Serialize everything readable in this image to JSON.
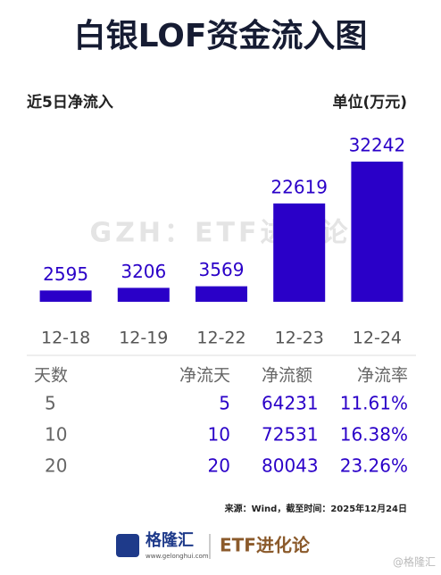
{
  "chart_data": {
    "type": "bar",
    "title": "白银LOF资金流入图",
    "subtitle": "近5日净流入",
    "unit": "单位(万元)",
    "watermark": "GZH：ETF进化论",
    "categories": [
      "12-18",
      "12-19",
      "12-22",
      "12-23",
      "12-24"
    ],
    "values": [
      2595,
      3206,
      3569,
      22619,
      32242
    ],
    "color": "#2a00c8"
  },
  "table": {
    "header": [
      "天数",
      "净流天",
      "净流额",
      "净流率"
    ],
    "rows": [
      [
        5,
        5,
        64231,
        "11.61%"
      ],
      [
        10,
        10,
        72531,
        "16.38%"
      ],
      [
        20,
        20,
        80043,
        "23.26%"
      ]
    ]
  },
  "source": "来源：Wind，截至时间：2025年12月24日",
  "footer": {
    "brand": "格隆汇",
    "url": "www.gelonghui.com",
    "channel": "ETF进化论",
    "corner": "@格隆汇"
  }
}
